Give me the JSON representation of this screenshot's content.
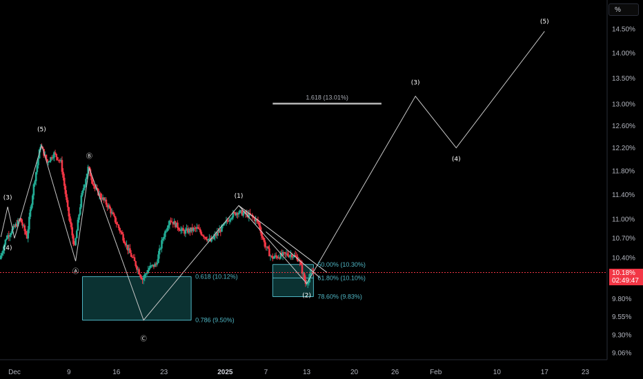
{
  "unit_badge": "%",
  "current_price": {
    "value_label": "10.18%",
    "countdown": "02:49:47",
    "value": 10.18,
    "color": "#f23645"
  },
  "colors": {
    "up": "#22ab94",
    "down": "#f23645",
    "fib": "#4fb6c4",
    "wave": "#c8c8c8",
    "zone_fill": "#0d3b3b"
  },
  "chart_data": {
    "type": "candlestick",
    "title": "",
    "xlabel": "",
    "ylabel": "",
    "y_axis_side": "right",
    "y_scale": "log",
    "ylim": [
      8.95,
      15.1
    ],
    "y_ticks": [
      {
        "value": 14.5,
        "label": "14.50%"
      },
      {
        "value": 14.0,
        "label": "14.00%"
      },
      {
        "value": 13.5,
        "label": "13.50%"
      },
      {
        "value": 13.0,
        "label": "13.00%"
      },
      {
        "value": 12.6,
        "label": "12.60%"
      },
      {
        "value": 12.2,
        "label": "12.20%"
      },
      {
        "value": 11.8,
        "label": "11.80%"
      },
      {
        "value": 11.4,
        "label": "11.40%"
      },
      {
        "value": 11.0,
        "label": "11.00%"
      },
      {
        "value": 10.7,
        "label": "10.70%"
      },
      {
        "value": 10.4,
        "label": "10.40%"
      },
      {
        "value": 9.8,
        "label": "9.80%"
      },
      {
        "value": 9.55,
        "label": "9.55%"
      },
      {
        "value": 9.3,
        "label": "9.30%"
      },
      {
        "value": 9.06,
        "label": "9.06%"
      }
    ],
    "x_ticks": [
      {
        "date": "2024-12-01",
        "label": "Dec",
        "bold": false
      },
      {
        "date": "2024-12-09",
        "label": "9",
        "bold": false
      },
      {
        "date": "2024-12-16",
        "label": "16",
        "bold": false
      },
      {
        "date": "2024-12-23",
        "label": "23",
        "bold": false
      },
      {
        "date": "2025-01-01",
        "label": "2025",
        "bold": true
      },
      {
        "date": "2025-01-07",
        "label": "7",
        "bold": false
      },
      {
        "date": "2025-01-13",
        "label": "13",
        "bold": false
      },
      {
        "date": "2025-01-20",
        "label": "20",
        "bold": false
      },
      {
        "date": "2025-01-26",
        "label": "26",
        "bold": false
      },
      {
        "date": "2025-02-01",
        "label": "Feb",
        "bold": false
      },
      {
        "date": "2025-02-10",
        "label": "10",
        "bold": false
      },
      {
        "date": "2025-02-17",
        "label": "17",
        "bold": false
      },
      {
        "date": "2025-02-23",
        "label": "23",
        "bold": false
      }
    ],
    "price_anchors": [
      {
        "date": "2024-11-29",
        "price": 10.38
      },
      {
        "date": "2024-11-30",
        "price": 10.72
      },
      {
        "date": "2024-12-01",
        "price": 10.85
      },
      {
        "date": "2024-12-02",
        "price": 11.0
      },
      {
        "date": "2024-12-03",
        "price": 10.72
      },
      {
        "date": "2024-12-04",
        "price": 11.55
      },
      {
        "date": "2024-12-05",
        "price": 12.25
      },
      {
        "date": "2024-12-06",
        "price": 11.95
      },
      {
        "date": "2024-12-07",
        "price": 12.1
      },
      {
        "date": "2024-12-08",
        "price": 11.95
      },
      {
        "date": "2024-12-09",
        "price": 11.15
      },
      {
        "date": "2024-12-10",
        "price": 10.55
      },
      {
        "date": "2024-12-11",
        "price": 11.35
      },
      {
        "date": "2024-12-12",
        "price": 11.85
      },
      {
        "date": "2024-12-13",
        "price": 11.5
      },
      {
        "date": "2024-12-15",
        "price": 11.2
      },
      {
        "date": "2024-12-17",
        "price": 10.75
      },
      {
        "date": "2024-12-18",
        "price": 10.5
      },
      {
        "date": "2024-12-19",
        "price": 10.3
      },
      {
        "date": "2024-12-20",
        "price": 10.08
      },
      {
        "date": "2024-12-21",
        "price": 10.25
      },
      {
        "date": "2024-12-22",
        "price": 10.3
      },
      {
        "date": "2024-12-23",
        "price": 10.7
      },
      {
        "date": "2024-12-24",
        "price": 11.0
      },
      {
        "date": "2024-12-26",
        "price": 10.8
      },
      {
        "date": "2024-12-28",
        "price": 10.85
      },
      {
        "date": "2024-12-30",
        "price": 10.65
      },
      {
        "date": "2025-01-01",
        "price": 10.9
      },
      {
        "date": "2025-01-02",
        "price": 11.05
      },
      {
        "date": "2025-01-03",
        "price": 11.12
      },
      {
        "date": "2025-01-05",
        "price": 11.05
      },
      {
        "date": "2025-01-06",
        "price": 10.95
      },
      {
        "date": "2025-01-07",
        "price": 10.6
      },
      {
        "date": "2025-01-08",
        "price": 10.4
      },
      {
        "date": "2025-01-10",
        "price": 10.45
      },
      {
        "date": "2025-01-11",
        "price": 10.45
      },
      {
        "date": "2025-01-12",
        "price": 10.38
      },
      {
        "date": "2025-01-13",
        "price": 10.02
      },
      {
        "date": "2025-01-14",
        "price": 10.18
      }
    ],
    "wave_labels": [
      {
        "text": "(3)",
        "date": "2024-11-30",
        "price": 11.32
      },
      {
        "text": "(4)",
        "date": "2024-11-30",
        "price": 10.52
      },
      {
        "text": "(5)",
        "date": "2024-12-05",
        "price": 12.5
      },
      {
        "text": "Ⓐ",
        "date": "2024-12-10",
        "price": 10.17
      },
      {
        "text": "Ⓑ",
        "date": "2024-12-12",
        "price": 12.02
      },
      {
        "text": "Ⓒ",
        "date": "2024-12-20",
        "price": 9.22
      },
      {
        "text": "(1)",
        "date": "2025-01-03",
        "price": 11.35
      },
      {
        "text": "(2)",
        "date": "2025-01-13",
        "price": 9.82
      },
      {
        "text": "(3)",
        "date": "2025-01-29",
        "price": 13.38
      },
      {
        "text": "(4)",
        "date": "2025-02-04",
        "price": 11.97
      },
      {
        "text": "(5)",
        "date": "2025-02-17",
        "price": 14.62
      }
    ],
    "wave_path": [
      {
        "date": "2024-11-29",
        "price": 10.72
      },
      {
        "date": "2024-11-30",
        "price": 11.2
      },
      {
        "date": "2024-12-01",
        "price": 10.7
      },
      {
        "date": "2024-12-05",
        "price": 12.25
      },
      {
        "date": "2024-12-10",
        "price": 10.35
      },
      {
        "date": "2024-12-12",
        "price": 11.85
      },
      {
        "date": "2024-12-20",
        "price": 9.5
      },
      {
        "date": "2025-01-03",
        "price": 11.22
      },
      {
        "date": "2025-01-13",
        "price": 10.02
      },
      {
        "date": "2025-01-29",
        "price": 13.15
      },
      {
        "date": "2025-02-04",
        "price": 12.2
      },
      {
        "date": "2025-02-17",
        "price": 14.45
      }
    ],
    "fib_zone_1": {
      "from": "2024-12-11",
      "to": "2024-12-27",
      "levels": [
        {
          "value": 10.12,
          "label": "0.618 (10.12%)"
        },
        {
          "value": 9.5,
          "label": "0.786 (9.50%)"
        }
      ]
    },
    "fib_zone_2": {
      "from": "2025-01-08",
      "to": "2025-01-14",
      "levels": [
        {
          "value": 10.3,
          "label": "50.00% (10.30%)"
        },
        {
          "value": 10.1,
          "label": "61.80% (10.10%)"
        },
        {
          "value": 9.83,
          "label": "78.60% (9.83%)"
        }
      ]
    },
    "extension_line": {
      "from": "2025-01-08",
      "to": "2025-01-24",
      "value": 13.01,
      "label": "1.618 (13.01%)"
    },
    "wedge_lines": [
      {
        "from": {
          "date": "2025-01-03",
          "price": 11.22
        },
        "to": {
          "date": "2025-01-16",
          "price": 10.18
        }
      },
      {
        "from": {
          "date": "2025-01-07",
          "price": 10.8
        },
        "to": {
          "date": "2025-01-15",
          "price": 10.1
        }
      }
    ]
  }
}
